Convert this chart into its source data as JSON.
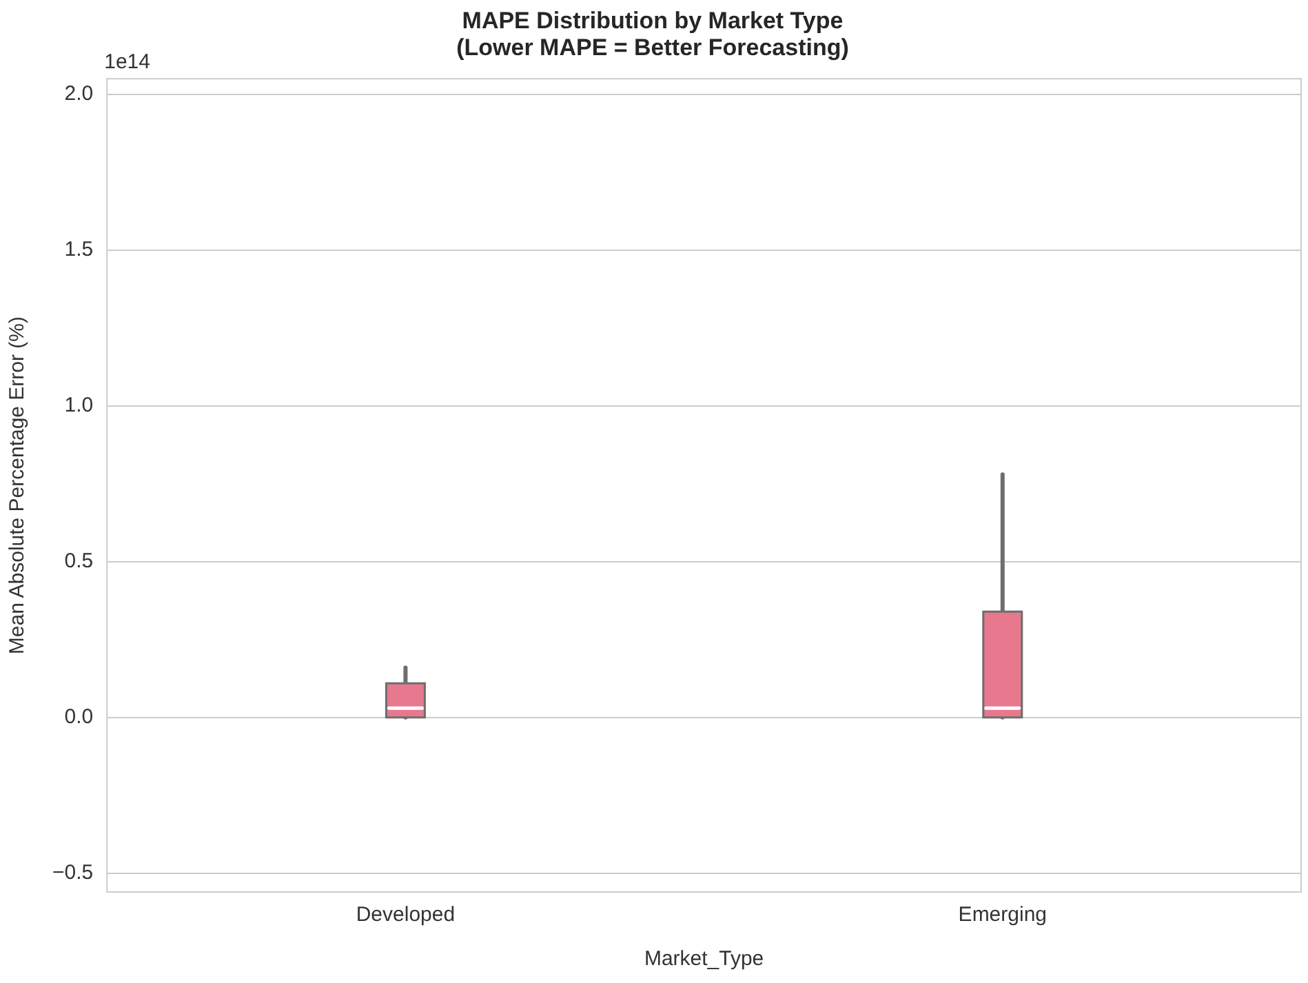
{
  "chart_data": {
    "type": "box",
    "title": "MAPE Distribution by Market Type\n(Lower MAPE = Better Forecasting)",
    "xlabel": "Market_Type",
    "ylabel": "Mean Absolute Percentage Error (%)",
    "categories": [
      "Developed",
      "Emerging"
    ],
    "boxes": [
      {
        "low": 0,
        "q1": 0,
        "median": 0.03,
        "q3": 0.11,
        "high": 0.16
      },
      {
        "low": 0,
        "q1": 0,
        "median": 0.03,
        "q3": 0.34,
        "high": 0.78
      }
    ],
    "color": "#e8788e",
    "ylim": [
      -0.56,
      2.05
    ],
    "yticks": [
      {
        "value": -0.5,
        "label": "−0.5"
      },
      {
        "value": 0,
        "label": "0.0"
      },
      {
        "value": 0.5,
        "label": "0.5"
      },
      {
        "value": 1,
        "label": "1.0"
      },
      {
        "value": 1.5,
        "label": "1.5"
      },
      {
        "value": 2,
        "label": "2.0"
      }
    ],
    "grid": "y",
    "legend": false,
    "annotations": [
      "1e14"
    ]
  }
}
